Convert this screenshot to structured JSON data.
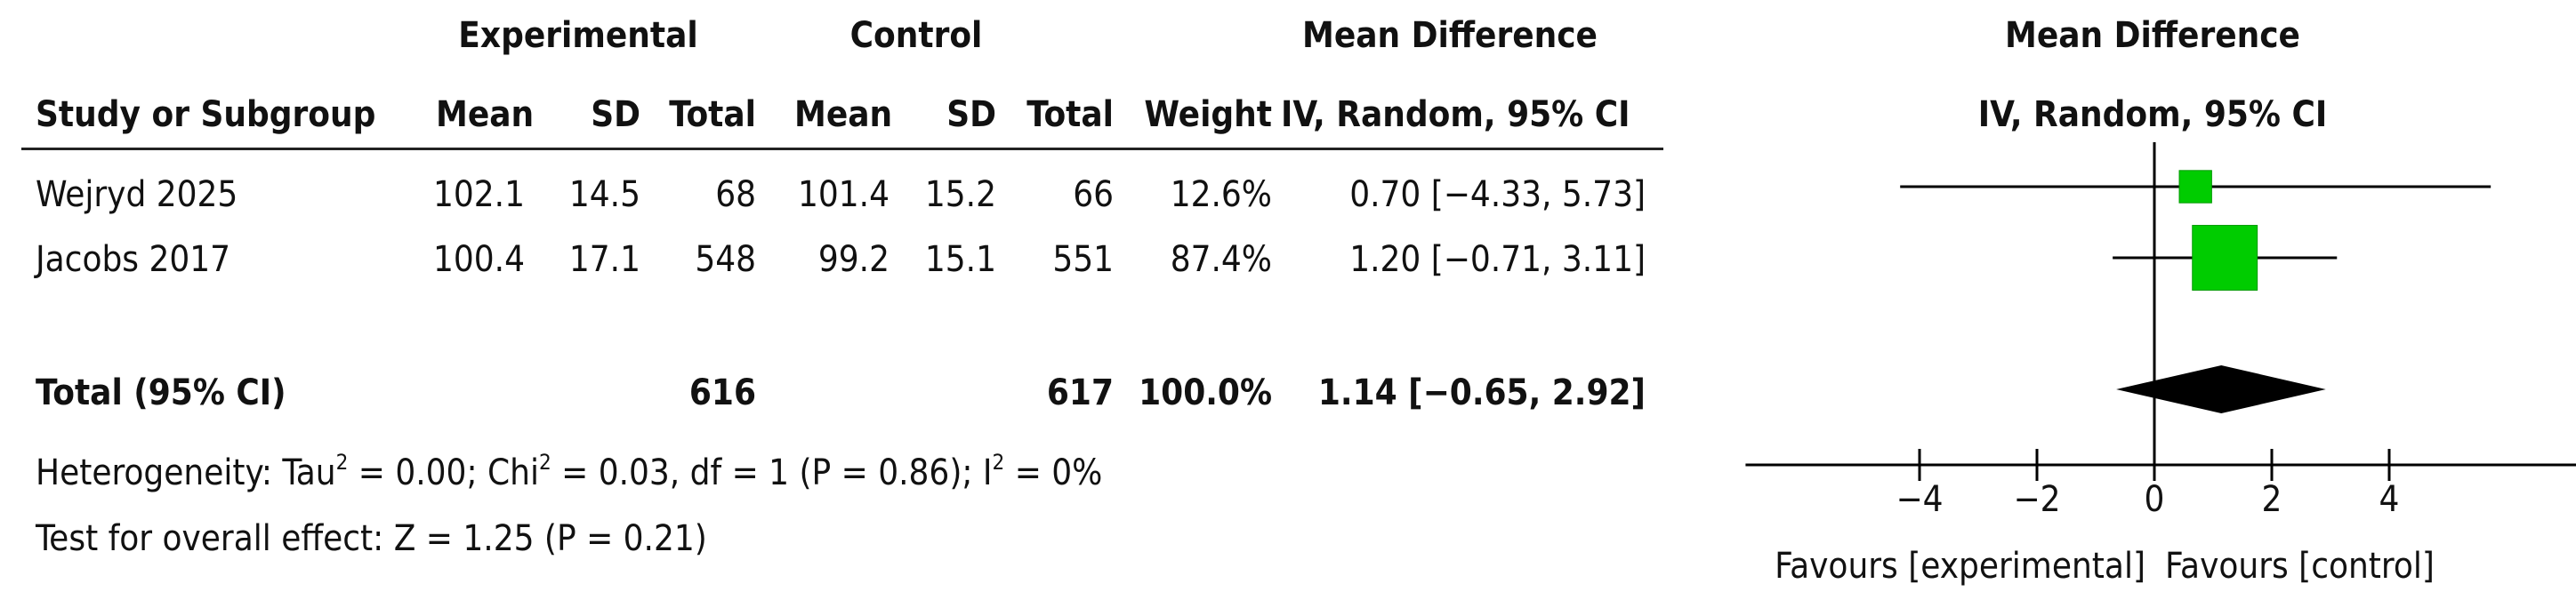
{
  "headers": {
    "group1": "Experimental",
    "group2": "Control",
    "effect_group": "Mean Difference",
    "study": "Study or Subgroup",
    "mean1": "Mean",
    "sd1": "SD",
    "total1": "Total",
    "mean2": "Mean",
    "sd2": "SD",
    "total2": "Total",
    "weight": "Weight",
    "method": "IV, Random, 95% CI",
    "plot_title": "Mean Difference",
    "plot_method": "IV, Random, 95% CI"
  },
  "studies": [
    {
      "name": "Wejryd 2025",
      "mean1": "102.1",
      "sd1": "14.5",
      "total1": "68",
      "mean2": "101.4",
      "sd2": "15.2",
      "total2": "66",
      "weight": "12.6%",
      "ci": "0.70 [−4.33, 5.73]"
    },
    {
      "name": "Jacobs 2017",
      "mean1": "100.4",
      "sd1": "17.1",
      "total1": "548",
      "mean2": "99.2",
      "sd2": "15.1",
      "total2": "551",
      "weight": "87.4%",
      "ci": "1.20 [−0.71, 3.11]"
    }
  ],
  "total": {
    "label": "Total (95% CI)",
    "total1": "616",
    "total2": "617",
    "weight": "100.0%",
    "ci": "1.14 [−0.65, 2.92]"
  },
  "heterogeneity": {
    "p1": "Heterogeneity: Tau",
    "s1": "2",
    "p2": " = 0.00; Chi",
    "s2": "2",
    "p3": " = 0.03, df = 1 (P = 0.86); I",
    "s3": "2",
    "p4": " = 0%"
  },
  "overall_effect": "Test for overall effect: Z = 1.25 (P = 0.21)",
  "favours_left": "Favours [experimental]",
  "favours_right": "Favours [control]",
  "colors": {
    "marker": "#00cc00",
    "diamond": "#000000",
    "line": "#000000"
  },
  "chart_data": {
    "type": "forest",
    "axis_ticks": [
      -4,
      -2,
      0,
      2,
      4
    ],
    "xlim": [
      -5.6,
      5.6
    ],
    "studies": [
      {
        "name": "Wejryd 2025",
        "estimate": 0.7,
        "lower": -4.33,
        "upper": 5.73,
        "weight": 12.6
      },
      {
        "name": "Jacobs 2017",
        "estimate": 1.2,
        "lower": -0.71,
        "upper": 3.11,
        "weight": 87.4
      }
    ],
    "pooled": {
      "estimate": 1.14,
      "lower": -0.65,
      "upper": 2.92
    }
  }
}
